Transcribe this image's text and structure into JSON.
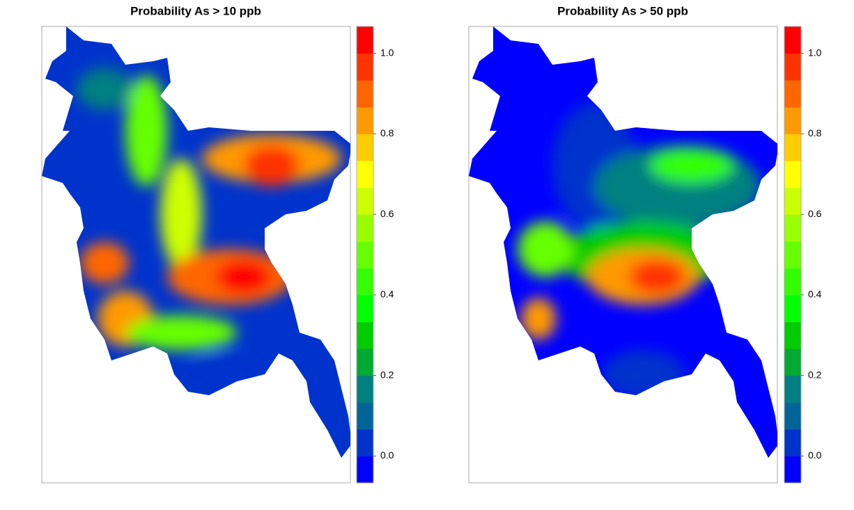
{
  "chart_data": [
    {
      "type": "heatmap",
      "title": "Probability As > 10 ppb",
      "zlim": [
        -0.0667,
        1.0667
      ],
      "colors": [
        "#0000ff",
        "#0033cc",
        "#006699",
        "#008080",
        "#00aa33",
        "#00cc00",
        "#00ff00",
        "#33ff00",
        "#66ff00",
        "#99ff00",
        "#ccff00",
        "#ffff00",
        "#ffcc00",
        "#ff9900",
        "#ff6600",
        "#ff3300",
        "#ff0000"
      ],
      "zticks": [
        {
          "value": 0,
          "label": "0.0"
        },
        0.2,
        0.4,
        0.6,
        0.8,
        {
          "value": 1,
          "label": "1.0"
        }
      ]
    },
    {
      "type": "heatmap",
      "title": "Probability As > 50 ppb",
      "zlim": [
        -0.0667,
        1.0667
      ],
      "colors": [
        "#0000ff",
        "#0033cc",
        "#006699",
        "#008080",
        "#00aa33",
        "#00cc00",
        "#00ff00",
        "#33ff00",
        "#66ff00",
        "#99ff00",
        "#ccff00",
        "#ffff00",
        "#ffcc00",
        "#ff9900",
        "#ff6600",
        "#ff3300",
        "#ff0000"
      ],
      "zticks": [
        {
          "value": 0,
          "label": "0.0"
        },
        0.2,
        0.4,
        0.6,
        0.8,
        {
          "value": 1,
          "label": "1.0"
        }
      ]
    }
  ]
}
